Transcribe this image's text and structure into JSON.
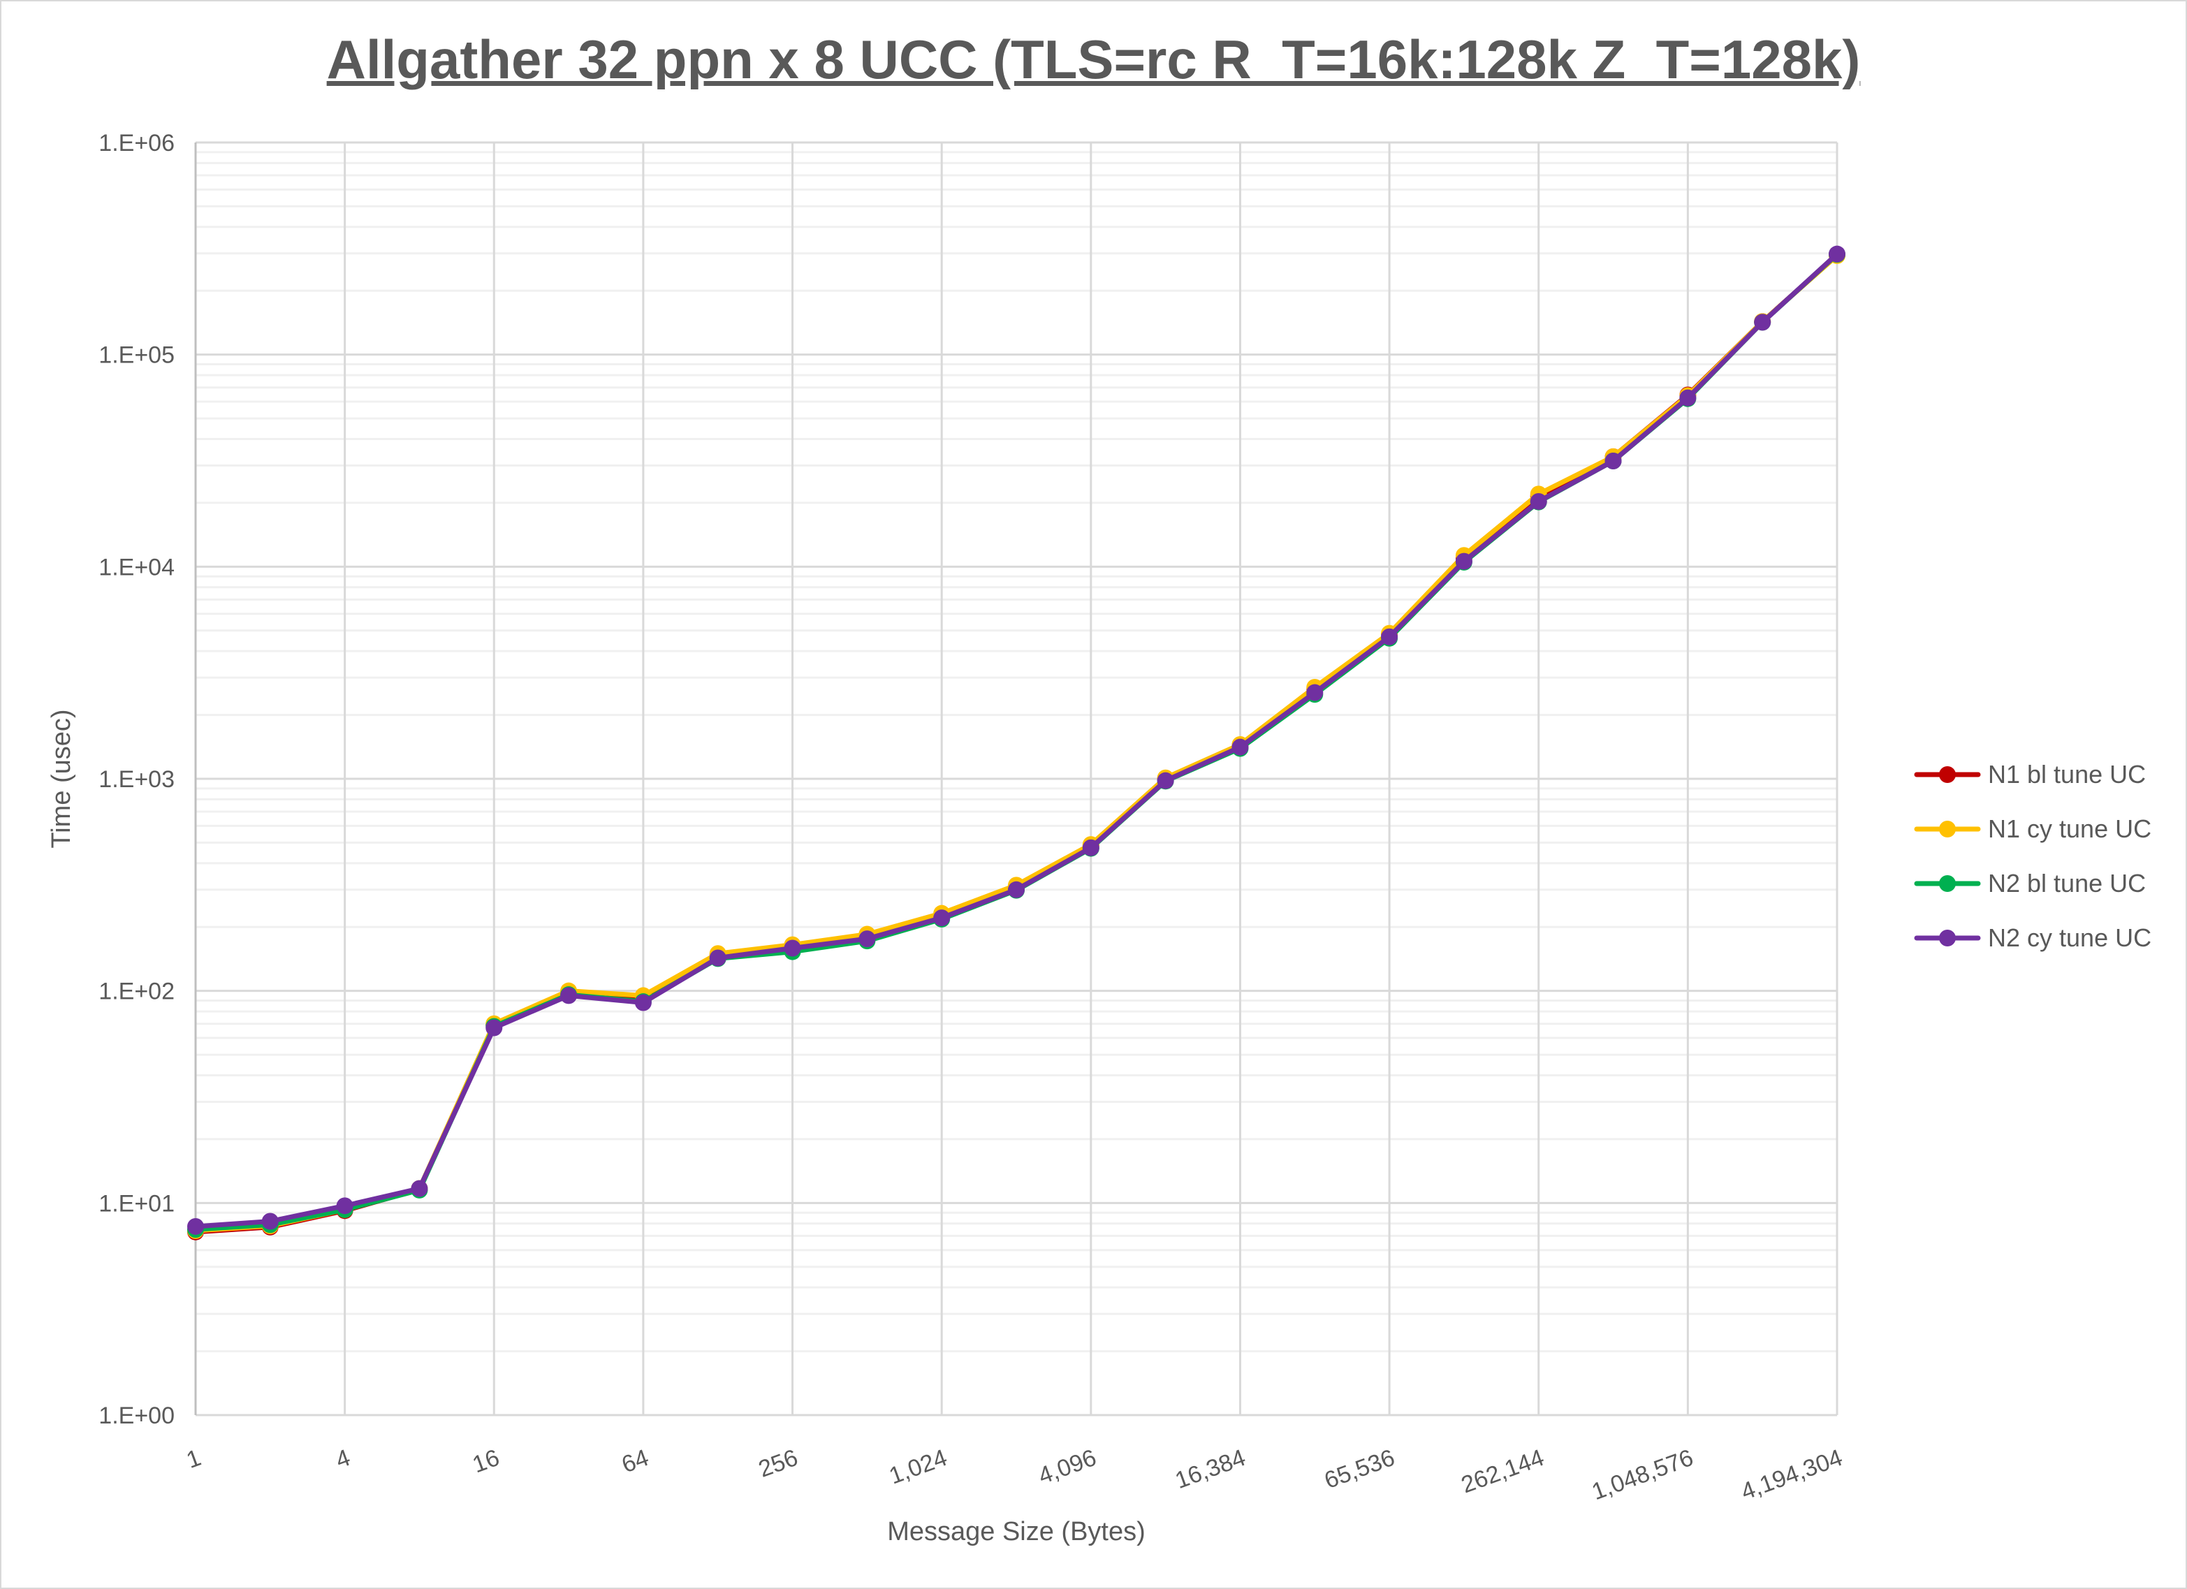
{
  "chart_data": {
    "type": "line",
    "title": "Allgather 32 ppn x 8 UCC (TLS=rc R_T=16k:128k Z_T=128k)",
    "xlabel": "Message Size (Bytes)",
    "ylabel": "Time (usec)",
    "x_scale": "log2",
    "y_scale": "log10",
    "ylim": [
      1,
      1000000
    ],
    "grid": true,
    "legend_position": "right",
    "x": [
      1,
      2,
      4,
      8,
      16,
      32,
      64,
      128,
      256,
      512,
      1024,
      2048,
      4096,
      8192,
      16384,
      32768,
      65536,
      131072,
      262144,
      524288,
      1048576,
      2097152,
      4194304
    ],
    "x_tick_labels": [
      "1",
      "4",
      "16",
      "64",
      "256",
      "1,024",
      "4,096",
      "16,384",
      "65,536",
      "262,144",
      "1,048,576",
      "4,194,304"
    ],
    "y_tick_labels": [
      "1.E+00",
      "1.E+01",
      "1.E+02",
      "1.E+03",
      "1.E+04",
      "1.E+05",
      "1.E+06"
    ],
    "series": [
      {
        "name": "N1 bl tune UC",
        "color": "#c00000",
        "values": [
          7.3,
          7.7,
          9.2,
          11.6,
          69,
          99,
          93,
          148,
          162,
          180,
          228,
          310,
          485,
          1000,
          1440,
          2650,
          4800,
          11000,
          21500,
          33000,
          64500,
          143000,
          295000
        ]
      },
      {
        "name": "N1 cy tune UC",
        "color": "#ffc000",
        "values": [
          7.4,
          7.8,
          9.3,
          11.7,
          70,
          100,
          95,
          150,
          165,
          185,
          232,
          315,
          490,
          1010,
          1450,
          2700,
          4850,
          11300,
          22000,
          33000,
          64000,
          143000,
          293000
        ]
      },
      {
        "name": "N2 bl tune UC",
        "color": "#00b050",
        "values": [
          7.5,
          7.9,
          9.3,
          11.5,
          68,
          96,
          89,
          142,
          153,
          172,
          218,
          298,
          470,
          975,
          1390,
          2500,
          4600,
          10500,
          20200,
          31500,
          62000,
          142000,
          297000
        ]
      },
      {
        "name": "N2 cy tune UC",
        "color": "#7030a0",
        "values": [
          7.75,
          8.2,
          9.7,
          11.7,
          67,
          95,
          88,
          143,
          159,
          176,
          221,
          300,
          473,
          980,
          1410,
          2550,
          4670,
          10600,
          20300,
          31500,
          62500,
          142000,
          298000
        ]
      }
    ]
  }
}
